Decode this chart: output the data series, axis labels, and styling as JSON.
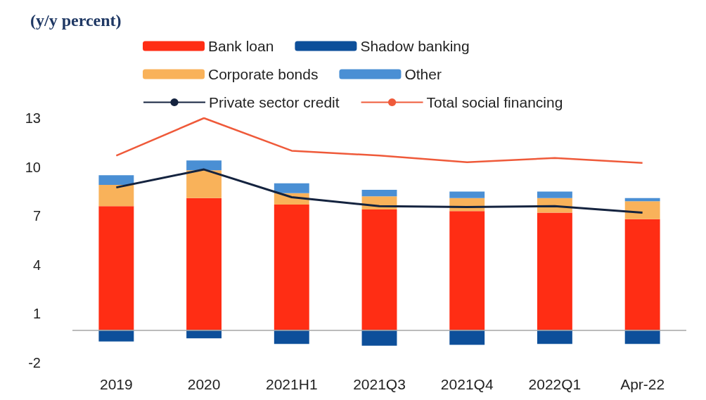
{
  "chart_data": {
    "type": "bar",
    "title": "(y/y percent)",
    "stacked": true,
    "categories": [
      "2019",
      "2020",
      "2021H1",
      "2021Q3",
      "2021Q4",
      "2022Q1",
      "Apr-22"
    ],
    "series": [
      {
        "name": "Bank loan",
        "color": "#ff2d14",
        "values": [
          7.6,
          8.1,
          7.7,
          7.4,
          7.3,
          7.2,
          6.8
        ]
      },
      {
        "name": "Shadow banking",
        "color": "#0d4f9a",
        "values": [
          -0.7,
          -0.5,
          -0.85,
          -0.95,
          -0.9,
          -0.85,
          -0.85
        ]
      },
      {
        "name": "Corporate bonds",
        "color": "#f9b25a",
        "values": [
          1.3,
          1.7,
          0.7,
          0.8,
          0.8,
          0.9,
          1.1
        ]
      },
      {
        "name": "Other",
        "color": "#4a8fd4",
        "values": [
          0.6,
          0.6,
          0.6,
          0.4,
          0.4,
          0.4,
          0.2
        ]
      },
      {
        "name": "Private sector credit",
        "type": "line",
        "color": "#14233f",
        "values": [
          8.75,
          9.85,
          8.15,
          7.6,
          7.55,
          7.6,
          7.2
        ]
      },
      {
        "name": "Total social financing",
        "type": "line",
        "color": "#ef5a3a",
        "values": [
          10.7,
          13.0,
          11.0,
          10.7,
          10.3,
          10.55,
          10.25
        ]
      }
    ],
    "ylim": [
      -2,
      13
    ],
    "yticks": [
      -2,
      1,
      4,
      7,
      10,
      13
    ],
    "grid": false,
    "legend": "top",
    "marker": "none",
    "ref_lines": [
      {
        "axis": "y",
        "value": 0,
        "color": "#a6a6a6"
      }
    ]
  }
}
